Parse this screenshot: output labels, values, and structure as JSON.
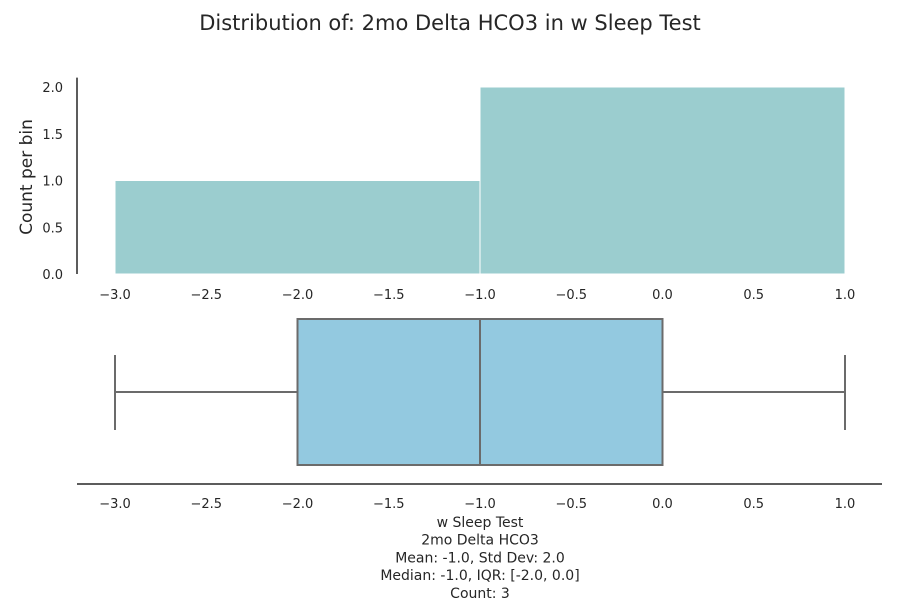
{
  "chart_data": {
    "title": "Distribution of: 2mo Delta HCO3 in w Sleep Test",
    "histogram": {
      "type": "bar",
      "bins": [
        {
          "x0": -3.0,
          "x1": -1.0,
          "count": 1
        },
        {
          "x0": -1.0,
          "x1": 1.0,
          "count": 2
        }
      ],
      "xlim": [
        -3.2,
        1.0
      ],
      "ylim": [
        0,
        2.1
      ],
      "x_ticks": [
        -3.0,
        -2.5,
        -2.0,
        -1.5,
        -1.0,
        -0.5,
        0.0,
        0.5,
        1.0
      ],
      "x_tick_labels": [
        "−3.0",
        "−2.5",
        "−2.0",
        "−1.5",
        "−1.0",
        "−0.5",
        "0.0",
        "0.5",
        "1.0"
      ],
      "y_ticks": [
        0.0,
        0.5,
        1.0,
        1.5,
        2.0
      ],
      "y_tick_labels": [
        "0.0",
        "0.5",
        "1.0",
        "1.5",
        "2.0"
      ],
      "ylabel": "Count per bin",
      "color": "#9bcdcf",
      "edge_color": "#ffffff"
    },
    "boxplot": {
      "type": "box",
      "min": -3.0,
      "q1": -2.0,
      "median": -1.0,
      "q3": 0.0,
      "max": 1.0,
      "xlim": [
        -3.2,
        1.2
      ],
      "x_ticks": [
        -3.0,
        -2.5,
        -2.0,
        -1.5,
        -1.0,
        -0.5,
        0.0,
        0.5,
        1.0
      ],
      "x_tick_labels": [
        "−3.0",
        "−2.5",
        "−2.0",
        "−1.5",
        "−1.0",
        "−0.5",
        "0.0",
        "0.5",
        "1.0"
      ],
      "box_color": "#93c9e0",
      "line_color": "#6b6b6b"
    },
    "xlabel_lines": [
      "w Sleep Test",
      "2mo Delta HCO3",
      "Mean: -1.0, Std Dev: 2.0",
      "Median: -1.0, IQR: [-2.0, 0.0]",
      "Count: 3"
    ]
  }
}
